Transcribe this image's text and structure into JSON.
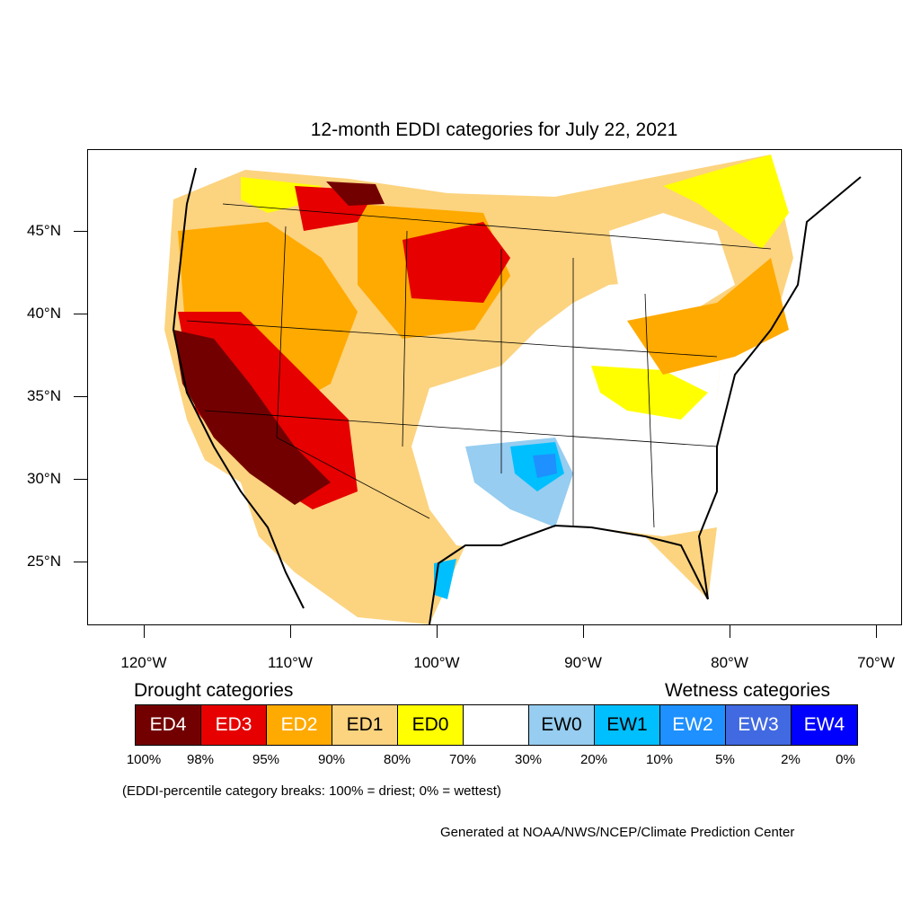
{
  "title": "12-month EDDI categories for July 22, 2021",
  "map": {
    "type": "choropleth",
    "region": "contiguous United States",
    "lat_labels": [
      "45°N",
      "40°N",
      "35°N",
      "30°N",
      "25°N"
    ],
    "lon_labels": [
      "120°W",
      "110°W",
      "100°W",
      "90°W",
      "80°W",
      "70°W"
    ]
  },
  "legend": {
    "drought_heading": "Drought categories",
    "wetness_heading": "Wetness categories",
    "categories": [
      {
        "label": "ED4",
        "color": "#730000",
        "text_color": "#ffffff"
      },
      {
        "label": "ED3",
        "color": "#e60000",
        "text_color": "#ffffff"
      },
      {
        "label": "ED2",
        "color": "#ffaa00",
        "text_color": "#ffffff"
      },
      {
        "label": "ED1",
        "color": "#fcd37f",
        "text_color": "#000000"
      },
      {
        "label": "ED0",
        "color": "#ffff00",
        "text_color": "#000000"
      },
      {
        "label": "",
        "color": "#ffffff",
        "text_color": "#000000"
      },
      {
        "label": "EW0",
        "color": "#96cdf0",
        "text_color": "#000000"
      },
      {
        "label": "EW1",
        "color": "#00bfff",
        "text_color": "#000000"
      },
      {
        "label": "EW2",
        "color": "#1e90ff",
        "text_color": "#ffffff"
      },
      {
        "label": "EW3",
        "color": "#4169e1",
        "text_color": "#ffffff"
      },
      {
        "label": "EW4",
        "color": "#0000ff",
        "text_color": "#ffffff"
      }
    ],
    "breaks": [
      "100%",
      "98%",
      "95%",
      "90%",
      "80%",
      "70%",
      "30%",
      "20%",
      "10%",
      "5%",
      "2%",
      "0%"
    ]
  },
  "note": "(EDDI-percentile category breaks: 100% = driest; 0% = wettest)",
  "credit": "Generated at NOAA/NWS/NCEP/Climate Prediction Center"
}
